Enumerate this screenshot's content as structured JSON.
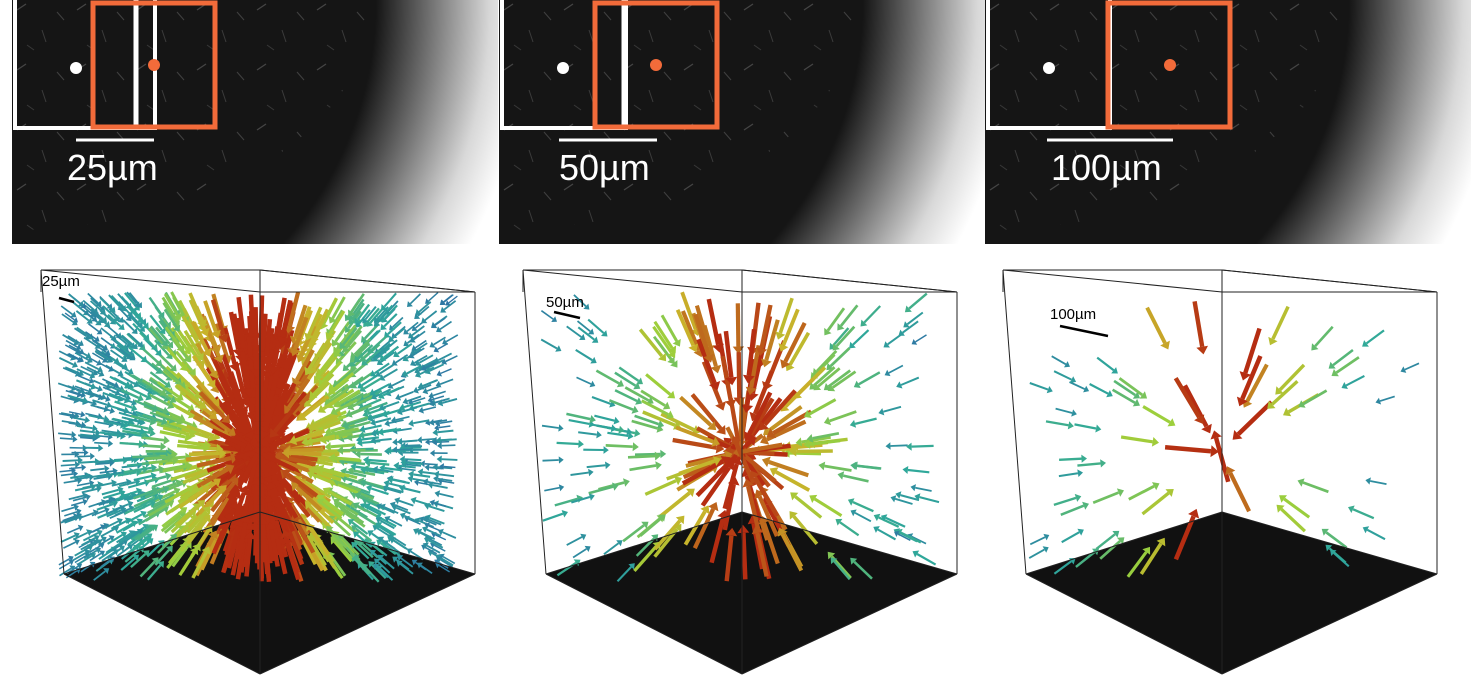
{
  "colors": {
    "highlight": "#f26b3a",
    "marker_white": "#ffffff",
    "image_dark": "#151515",
    "arrow_low": "#2d5fa8",
    "arrow_mid": "#2fa89a",
    "arrow_high_green": "#9ccf3c",
    "arrow_high_yellow": "#c9b22a",
    "arrow_peak": "#b52d12"
  },
  "panels": [
    {
      "id": "panel-25",
      "top": {
        "scale_label": "25µm",
        "line_gap": "white"
      },
      "bottom": {
        "scale_label": "25µm",
        "density": "dense"
      }
    },
    {
      "id": "panel-50",
      "top": {
        "scale_label": "50µm",
        "line_gap": "white"
      },
      "bottom": {
        "scale_label": "50µm",
        "density": "medium"
      }
    },
    {
      "id": "panel-100",
      "top": {
        "scale_label": "100µm",
        "line_gap": "none"
      },
      "bottom": {
        "scale_label": "100µm",
        "density": "sparse"
      }
    }
  ]
}
